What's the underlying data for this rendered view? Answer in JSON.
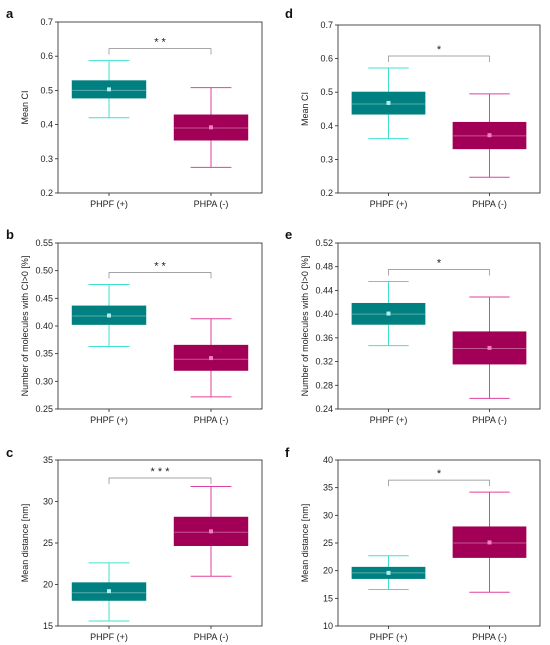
{
  "colors": {
    "teal": "#008080",
    "whisker_teal": "#40E0D0",
    "magenta": "#A10056",
    "whisker_pink": "#E040A0",
    "mean_teal": "#AEEEEE",
    "mean_pink": "#F080C0"
  },
  "chart_data": [
    {
      "panel": "a",
      "type": "box",
      "ylabel": "Mean CI",
      "ylim": [
        0.2,
        0.7
      ],
      "yticks": [
        "0.2",
        "0.3",
        "0.4",
        "0.5",
        "0.6",
        "0.7"
      ],
      "categories": [
        "PHPF (+)",
        "PHPA (-)"
      ],
      "boxes": [
        {
          "min": 0.42,
          "q1": 0.478,
          "median": 0.5,
          "q3": 0.528,
          "max": 0.587,
          "mean": 0.503
        },
        {
          "min": 0.275,
          "q1": 0.355,
          "median": 0.39,
          "q3": 0.428,
          "max": 0.508,
          "mean": 0.392
        }
      ],
      "significance": "* *"
    },
    {
      "panel": "b",
      "type": "box",
      "ylabel": "Number of molecules with CI>0 [%]",
      "ylim": [
        0.25,
        0.55
      ],
      "yticks": [
        "0.25",
        "0.30",
        "0.35",
        "0.40",
        "0.45",
        "0.50",
        "0.55"
      ],
      "categories": [
        "PHPF (+)",
        "PHPA (-)"
      ],
      "boxes": [
        {
          "min": 0.363,
          "q1": 0.403,
          "median": 0.418,
          "q3": 0.436,
          "max": 0.475,
          "mean": 0.419
        },
        {
          "min": 0.272,
          "q1": 0.32,
          "median": 0.34,
          "q3": 0.365,
          "max": 0.413,
          "mean": 0.342
        }
      ],
      "significance": "* *"
    },
    {
      "panel": "c",
      "type": "box",
      "ylabel": "Mean distance [nm]",
      "ylim": [
        15,
        35
      ],
      "yticks": [
        "15",
        "20",
        "25",
        "30",
        "35"
      ],
      "categories": [
        "PHPF (+)",
        "PHPA (-)"
      ],
      "boxes": [
        {
          "min": 15.6,
          "q1": 18.1,
          "median": 19.0,
          "q3": 20.2,
          "max": 22.6,
          "mean": 19.2
        },
        {
          "min": 21.0,
          "q1": 24.7,
          "median": 26.3,
          "q3": 28.1,
          "max": 31.8,
          "mean": 26.4
        }
      ],
      "significance": "* * *"
    },
    {
      "panel": "d",
      "type": "box",
      "ylabel": "Mean CI",
      "ylim": [
        0.2,
        0.7
      ],
      "yticks": [
        "0.2",
        "0.3",
        "0.4",
        "0.5",
        "0.6",
        "0.7"
      ],
      "categories": [
        "PHPF (+)",
        "PHPA (-)"
      ],
      "boxes": [
        {
          "min": 0.362,
          "q1": 0.435,
          "median": 0.465,
          "q3": 0.5,
          "max": 0.572,
          "mean": 0.468
        },
        {
          "min": 0.247,
          "q1": 0.332,
          "median": 0.37,
          "q3": 0.41,
          "max": 0.495,
          "mean": 0.372
        }
      ],
      "significance": "*"
    },
    {
      "panel": "e",
      "type": "box",
      "ylabel": "Number of molecules with CI>0 [%]",
      "ylim": [
        0.24,
        0.52
      ],
      "yticks": [
        "0.24",
        "0.28",
        "0.32",
        "0.36",
        "0.40",
        "0.44",
        "0.48",
        "0.52"
      ],
      "categories": [
        "PHPF (+)",
        "PHPA (-)"
      ],
      "boxes": [
        {
          "min": 0.347,
          "q1": 0.383,
          "median": 0.4,
          "q3": 0.418,
          "max": 0.455,
          "mean": 0.401
        },
        {
          "min": 0.258,
          "q1": 0.316,
          "median": 0.342,
          "q3": 0.37,
          "max": 0.429,
          "mean": 0.343
        }
      ],
      "significance": "*"
    },
    {
      "panel": "f",
      "type": "box",
      "ylabel": "Mean distance [nm]",
      "ylim": [
        10,
        40
      ],
      "yticks": [
        "10",
        "15",
        "20",
        "25",
        "30",
        "35",
        "40"
      ],
      "categories": [
        "PHPF (+)",
        "PHPA (-)"
      ],
      "boxes": [
        {
          "min": 16.6,
          "q1": 18.6,
          "median": 19.6,
          "q3": 20.6,
          "max": 22.7,
          "mean": 19.6
        },
        {
          "min": 16.1,
          "q1": 22.4,
          "median": 25.0,
          "q3": 27.9,
          "max": 34.2,
          "mean": 25.1
        }
      ],
      "significance": "*"
    }
  ]
}
